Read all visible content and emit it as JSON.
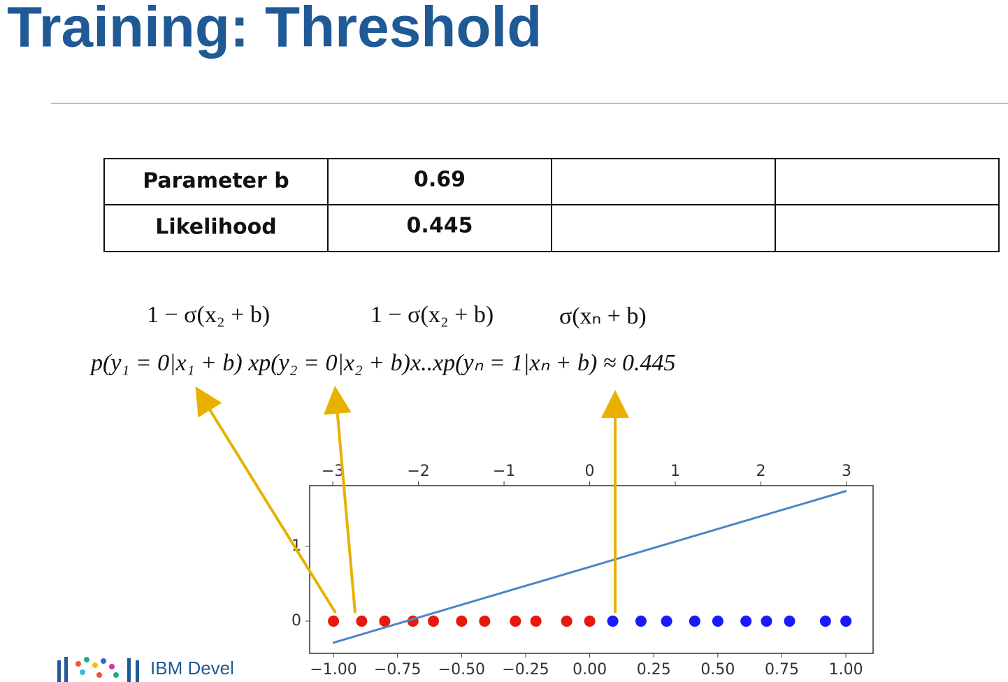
{
  "title": "Training: Threshold",
  "table": {
    "rows": [
      [
        "Parameter b",
        "0.69"
      ],
      [
        "Likelihood",
        "0.445"
      ]
    ]
  },
  "annotations": [
    "1 − σ(x₂ + b)",
    "1 − σ(x₂ + b)",
    "σ(xₙ + b)"
  ],
  "equation": "p(y₁ = 0|x₁ + b) xp(y₂ = 0|x₂ + b)x..xp(yₙ = 1|xₙ + b) ≈ 0.445",
  "footer": "IBM Devel",
  "chart_data": {
    "type": "scatter",
    "xlim": [
      -1.093,
      1.106
    ],
    "xticks": [
      {
        "value": -1,
        "label": "−1.00"
      },
      {
        "value": -0.75,
        "label": "−0.75"
      },
      {
        "value": -0.5,
        "label": "−0.50"
      },
      {
        "value": -0.25,
        "label": "−0.25"
      },
      {
        "value": 0,
        "label": "0.00"
      },
      {
        "value": 0.25,
        "label": "0.25"
      },
      {
        "value": 0.5,
        "label": "0.50"
      },
      {
        "value": 0.75,
        "label": "0.75"
      },
      {
        "value": 1,
        "label": "1.00"
      }
    ],
    "x2lim": [
      -3.27,
      3.31
    ],
    "x2ticks": [
      {
        "value": -3,
        "label": "−3"
      },
      {
        "value": -2,
        "label": "−2"
      },
      {
        "value": -1,
        "label": "−1"
      },
      0,
      1,
      2,
      3
    ],
    "ylim": [
      -0.43,
      1.81
    ],
    "yticks": [
      0,
      1
    ],
    "series": [
      {
        "color": "#e8190c",
        "x": [
          -1.0,
          -0.89,
          -0.8,
          -0.69,
          -0.61,
          -0.5,
          -0.41,
          -0.29,
          -0.21,
          -0.09,
          0.0
        ],
        "values": [
          0,
          0,
          0,
          0,
          0,
          0,
          0,
          0,
          0,
          0,
          0
        ]
      },
      {
        "color": "#1a1aff",
        "x": [
          0.09,
          0.2,
          0.3,
          0.41,
          0.5,
          0.61,
          0.69,
          0.78,
          0.92,
          1.0
        ],
        "values": [
          0,
          0,
          0,
          0,
          0,
          0,
          0,
          0,
          0,
          0
        ]
      },
      {
        "type": "line",
        "axis": "x2",
        "color": "#4f86c6",
        "x": [
          -3,
          3
        ],
        "values": [
          -0.29,
          1.74
        ]
      }
    ]
  }
}
